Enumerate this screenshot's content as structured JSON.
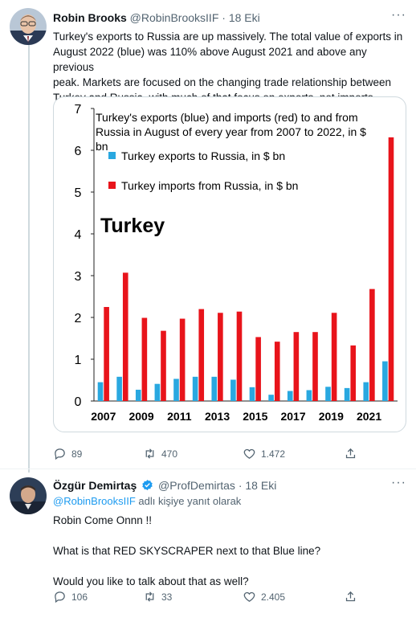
{
  "tweet1": {
    "author_name": "Robin Brooks",
    "author_handle": "@RobinBrooksIIF",
    "separator": "·",
    "date": "18 Eki",
    "more": "···",
    "text_lines": [
      "Turkey's exports to Russia are up massively. The total value of exports in",
      "August 2022 (blue) was 110% above August 2021 and above any previous",
      "peak. Markets are focused on the changing trade relationship between",
      "Turkey and Russia, with much of that focus on exports, not imports."
    ],
    "stats": {
      "replies": "89",
      "retweets": "470",
      "likes": "1.472"
    }
  },
  "chart_data": {
    "type": "bar",
    "title_lines": [
      "Turkey's exports (blue) and imports (red) to and from",
      "Russia in August of every year from 2007 to 2022, in $",
      "bn"
    ],
    "annotation": "Turkey",
    "categories": [
      "2007",
      "2008",
      "2009",
      "2010",
      "2011",
      "2012",
      "2013",
      "2014",
      "2015",
      "2016",
      "2017",
      "2018",
      "2019",
      "2020",
      "2021",
      "2022"
    ],
    "x_tick_labels": [
      "2007",
      "2009",
      "2011",
      "2013",
      "2015",
      "2017",
      "2019",
      "2021"
    ],
    "series": [
      {
        "name": "Turkey exports to Russia, in $ bn",
        "color": "#29a8e0",
        "values": [
          0.45,
          0.58,
          0.27,
          0.41,
          0.53,
          0.58,
          0.58,
          0.51,
          0.33,
          0.15,
          0.24,
          0.26,
          0.34,
          0.31,
          0.45,
          0.95
        ]
      },
      {
        "name": "Turkey imports from Russia, in $ bn",
        "color": "#e8141b",
        "values": [
          2.25,
          3.07,
          1.99,
          1.68,
          1.97,
          2.2,
          2.11,
          2.14,
          1.53,
          1.42,
          1.65,
          1.65,
          2.11,
          1.33,
          2.68,
          6.31
        ]
      }
    ],
    "y_ticks": [
      0,
      1,
      2,
      3,
      4,
      5,
      6,
      7
    ],
    "ylim": [
      0,
      7
    ],
    "legend_position": "top-left",
    "grid": false
  },
  "tweet2": {
    "author_name": "Özgür Demirtaş",
    "author_handle": "@ProfDemirtas",
    "separator": "·",
    "date": "18 Eki",
    "more": "···",
    "reply_to_mention": "@RobinBrooksIIF",
    "reply_to_suffix": " adlı kişiye yanıt olarak",
    "lines": [
      "Robin Come Onnn !!",
      "",
      "What is that RED SKYSCRAPER next to that Blue line?",
      "",
      "Would you like to talk about that as well?"
    ],
    "stats": {
      "replies": "106",
      "retweets": "33",
      "likes": "2.405"
    }
  },
  "colors": {
    "accent": "#1d9bf0",
    "secondary_text": "#536471"
  }
}
